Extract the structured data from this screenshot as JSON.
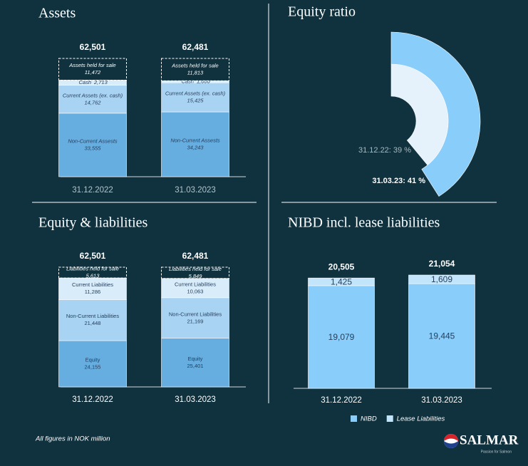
{
  "chart_data": [
    {
      "type": "stacked_bar",
      "title": "Assets",
      "categories": [
        "31.12.2022",
        "31.03.2023"
      ],
      "series": [
        {
          "name": "Non-Current Assests",
          "color": "#66ade0",
          "values": [
            33555,
            34243
          ],
          "value_labels": [
            "33,555",
            "34,243"
          ]
        },
        {
          "name": "Current Assets (ex. cash)",
          "color": "#a8d3f2",
          "values": [
            14762,
            15425
          ],
          "value_labels": [
            "14,762",
            "15,425"
          ]
        },
        {
          "name": "Cash",
          "color": "#d8ecfa",
          "values": [
            2713,
            1000
          ],
          "value_labels": [
            "2,713",
            "1,000"
          ]
        },
        {
          "name": "Assets held for sale",
          "color": "#ffffff",
          "dashed": true,
          "values": [
            11472,
            11813
          ],
          "value_labels": [
            "11,472",
            "11,813"
          ]
        }
      ],
      "totals": {
        "values": [
          62501,
          62481
        ],
        "value_labels": [
          "62,501",
          "62,481"
        ]
      }
    },
    {
      "type": "radial",
      "title": "Equity ratio",
      "values": [
        39,
        41
      ],
      "value_labels": [
        "31.12.22: 39 %",
        "31.03.23: 41 %"
      ],
      "colors": [
        "#e6f2fb",
        "#89cdfa"
      ]
    },
    {
      "type": "stacked_bar",
      "title": "Equity & liabilities",
      "categories": [
        "31.12.2022",
        "31.03.2023"
      ],
      "series": [
        {
          "name": "Equity",
          "color": "#66ade0",
          "values": [
            24155,
            25401
          ],
          "value_labels": [
            "24,155",
            "25,401"
          ]
        },
        {
          "name": "Non-Current Liabilities",
          "color": "#a8d3f2",
          "values": [
            21448,
            21169
          ],
          "value_labels": [
            "21,448",
            "21,169"
          ]
        },
        {
          "name": "Current Liabilities",
          "color": "#d8ecfa",
          "values": [
            11286,
            10063
          ],
          "value_labels": [
            "11,286",
            "10,063"
          ]
        },
        {
          "name": "Liabilities held for sale",
          "color": "#ffffff",
          "dashed": true,
          "values": [
            5613,
            5849
          ],
          "value_labels": [
            "5,613",
            "5,849"
          ]
        }
      ],
      "totals": {
        "values": [
          62501,
          62481
        ],
        "value_labels": [
          "62,501",
          "62,481"
        ]
      }
    },
    {
      "type": "stacked_bar",
      "title": "NIBD incl. lease liabilities",
      "categories": [
        "31.12.2022",
        "31.03.2023"
      ],
      "series": [
        {
          "name": "NIBD",
          "color": "#89cdfa",
          "values": [
            19079,
            19445
          ],
          "value_labels": [
            "19,079",
            "19,445"
          ]
        },
        {
          "name": "Lease Liabilities",
          "color": "#c2e5fb",
          "values": [
            1425,
            1609
          ],
          "value_labels": [
            "1,425",
            "1,609"
          ]
        }
      ],
      "totals": {
        "values": [
          20505,
          21054
        ],
        "value_labels": [
          "20,505",
          "21,054"
        ]
      },
      "legend": "bottom"
    }
  ],
  "footnote": "All figures in NOK million",
  "logo": {
    "name": "SALMAR",
    "tagline": "Passion for Salmon"
  }
}
